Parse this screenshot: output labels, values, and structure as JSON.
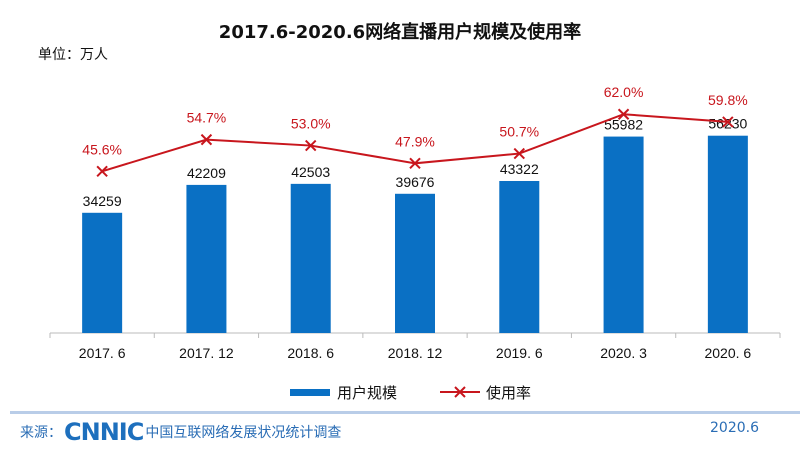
{
  "chart_data": {
    "type": "bar+line",
    "title": "2017.6-2020.6网络直播用户规模及使用率",
    "unit_label": "单位：万人",
    "categories": [
      "2017. 6",
      "2017. 12",
      "2018. 6",
      "2018. 12",
      "2019. 6",
      "2020. 3",
      "2020. 6"
    ],
    "series": [
      {
        "name": "用户规模",
        "type": "bar",
        "color": "#0a70c4",
        "values": [
          34259,
          42209,
          42503,
          39676,
          43322,
          55982,
          56230
        ],
        "labels": [
          "34259",
          "42209",
          "42503",
          "39676",
          "43322",
          "55982",
          "56230"
        ]
      },
      {
        "name": "使用率",
        "type": "line",
        "color": "#c8161d",
        "values": [
          45.6,
          54.7,
          53.0,
          47.9,
          50.7,
          62.0,
          59.8
        ],
        "labels": [
          "45.6%",
          "54.7%",
          "53.0%",
          "47.9%",
          "50.7%",
          "62.0%",
          "59.8%"
        ]
      }
    ],
    "legend": "bottom"
  },
  "footer": {
    "source_label": "来源：",
    "logo": "CNNIC",
    "source_name": "中国互联网络发展状况统计调查",
    "date": "2020.6"
  }
}
